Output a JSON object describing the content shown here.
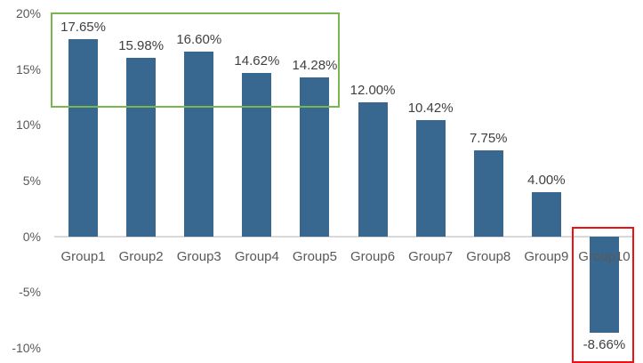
{
  "chart_data": {
    "type": "bar",
    "title": "",
    "xlabel": "",
    "ylabel": "",
    "categories": [
      "Group1",
      "Group2",
      "Group3",
      "Group4",
      "Group5",
      "Group6",
      "Group7",
      "Group8",
      "Group9",
      "Group10"
    ],
    "values": [
      17.65,
      15.98,
      16.6,
      14.62,
      14.28,
      12.0,
      10.42,
      7.75,
      4.0,
      -8.66
    ],
    "data_labels": [
      "17.65%",
      "15.98%",
      "16.60%",
      "14.62%",
      "14.28%",
      "12.00%",
      "10.42%",
      "7.75%",
      "4.00%",
      "-8.66%"
    ],
    "y_ticks": [
      {
        "value": 20,
        "label": "20%"
      },
      {
        "value": 15,
        "label": "15%"
      },
      {
        "value": 10,
        "label": "10%"
      },
      {
        "value": 5,
        "label": "5%"
      },
      {
        "value": 0,
        "label": "0%"
      },
      {
        "value": -5,
        "label": "-5%"
      },
      {
        "value": -10,
        "label": "-10%"
      }
    ],
    "ylim": [
      -10,
      20
    ],
    "grid": "off",
    "legend": "none",
    "colors": {
      "bar_fill": "#386890",
      "value_label_text": "#404040",
      "axis_text": "#595959",
      "baseline": "#D9D9D9",
      "green_annotation": "#79B74E",
      "red_annotation": "#EE1111"
    },
    "annotations": [
      {
        "shape": "rectangle",
        "color_key": "green_annotation",
        "covers": "tops of Group1 through Group5 bars"
      },
      {
        "shape": "rectangle",
        "color_key": "red_annotation",
        "covers": "Group10 negative bar and its -8.66% label"
      }
    ]
  }
}
